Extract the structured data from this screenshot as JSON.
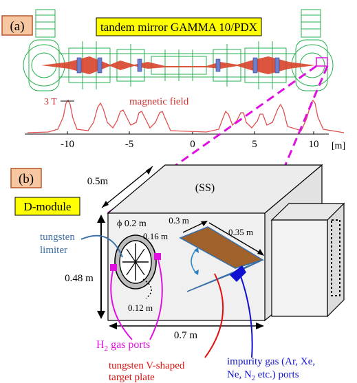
{
  "panel_a": {
    "tag": "(a)",
    "title": "tandem mirror GAMMA 10/PDX",
    "field_peak_label": "3 T",
    "field_label": "magnetic field",
    "axis_ticks": [
      "-10",
      "-5",
      "0",
      "5",
      "10"
    ],
    "axis_unit": "[m]"
  },
  "panel_b": {
    "tag": "(b)",
    "module_label": "D-module",
    "material": "(SS)",
    "dims": {
      "depth": "0.5m",
      "height": "0.48 m",
      "width": "0.7 m",
      "phi": "ϕ 0.2 m",
      "inner": "0.16 m",
      "gap": "0.12 m",
      "plate_w": "0.3 m",
      "plate_l": "0.35 m"
    },
    "limiter_label_line1": "tungsten",
    "limiter_label_line2": "limiter",
    "h2_label_pre": "H",
    "h2_label_sub": "2",
    "h2_label_post": " gas ports",
    "target_line1": "tungsten V-shaped",
    "target_line2": "target plate",
    "impurity_line1": "impurity gas (Ar, Xe,",
    "impurity_line2_pre": "Ne, N",
    "impurity_line2_sub": "2",
    "impurity_line2_post": " etc.) ports"
  },
  "colors": {
    "accent_yellow": "#ffff00",
    "tag_fill": "#f7c7a1",
    "tag_stroke": "#b8542a",
    "field_curve": "#e05050",
    "magenta": "#e010e0",
    "limiter_blue": "#3a6fa8",
    "target_red": "#e01010",
    "impurity_blue": "#1010d0",
    "plate_brown": "#a0622a",
    "machine_green": "#22b14c"
  }
}
